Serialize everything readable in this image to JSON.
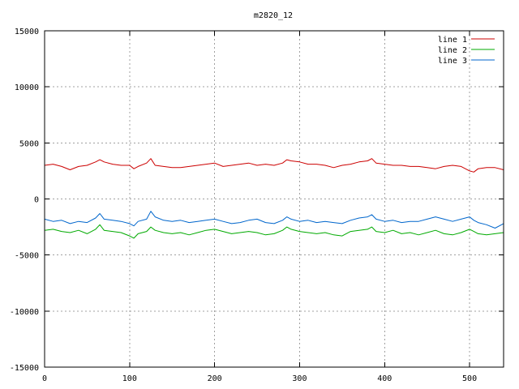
{
  "chart_data": {
    "type": "line",
    "title": "m2820_12",
    "xlabel": "",
    "ylabel": "",
    "xlim": [
      0,
      540
    ],
    "ylim": [
      -15000,
      15000
    ],
    "x_ticks": [
      0,
      100,
      200,
      300,
      400,
      500
    ],
    "y_ticks": [
      -15000,
      -10000,
      -5000,
      0,
      5000,
      10000,
      15000
    ],
    "grid": true,
    "legend_position": "top-right",
    "series": [
      {
        "name": "line 1",
        "color": "#cc0000",
        "x": [
          0,
          10,
          20,
          30,
          40,
          50,
          60,
          65,
          70,
          80,
          90,
          100,
          105,
          110,
          120,
          125,
          130,
          140,
          150,
          160,
          170,
          180,
          190,
          200,
          210,
          220,
          230,
          240,
          250,
          260,
          270,
          280,
          285,
          290,
          300,
          310,
          320,
          330,
          340,
          350,
          360,
          370,
          380,
          385,
          390,
          400,
          410,
          420,
          430,
          440,
          450,
          460,
          470,
          480,
          490,
          500,
          505,
          510,
          520,
          530,
          540
        ],
        "values": [
          3000,
          3100,
          2900,
          2600,
          2900,
          3000,
          3300,
          3500,
          3300,
          3100,
          3000,
          3000,
          2700,
          2900,
          3200,
          3600,
          3000,
          2900,
          2800,
          2800,
          2900,
          3000,
          3100,
          3200,
          2900,
          3000,
          3100,
          3200,
          3000,
          3100,
          3000,
          3200,
          3500,
          3400,
          3300,
          3100,
          3100,
          3000,
          2800,
          3000,
          3100,
          3300,
          3400,
          3600,
          3200,
          3100,
          3000,
          3000,
          2900,
          2900,
          2800,
          2700,
          2900,
          3000,
          2900,
          2500,
          2400,
          2700,
          2800,
          2800,
          2600
        ]
      },
      {
        "name": "line 2",
        "color": "#00aa00",
        "x": [
          0,
          10,
          20,
          30,
          40,
          50,
          60,
          65,
          70,
          80,
          90,
          100,
          105,
          110,
          120,
          125,
          130,
          140,
          150,
          160,
          170,
          180,
          190,
          200,
          210,
          220,
          230,
          240,
          250,
          260,
          270,
          280,
          285,
          290,
          300,
          310,
          320,
          330,
          340,
          350,
          360,
          370,
          380,
          385,
          390,
          400,
          410,
          420,
          430,
          440,
          450,
          460,
          470,
          480,
          490,
          500,
          505,
          510,
          520,
          530,
          540
        ],
        "values": [
          -2800,
          -2700,
          -2900,
          -3000,
          -2800,
          -3100,
          -2700,
          -2300,
          -2800,
          -2900,
          -3000,
          -3300,
          -3500,
          -3100,
          -2900,
          -2500,
          -2800,
          -3000,
          -3100,
          -3000,
          -3200,
          -3000,
          -2800,
          -2700,
          -2900,
          -3100,
          -3000,
          -2900,
          -3000,
          -3200,
          -3100,
          -2800,
          -2500,
          -2700,
          -2900,
          -3000,
          -3100,
          -3000,
          -3200,
          -3300,
          -2900,
          -2800,
          -2700,
          -2500,
          -2900,
          -3000,
          -2800,
          -3100,
          -3000,
          -3200,
          -3000,
          -2800,
          -3100,
          -3200,
          -3000,
          -2700,
          -2900,
          -3100,
          -3200,
          -3100,
          -3000
        ]
      },
      {
        "name": "line 3",
        "color": "#0066cc",
        "x": [
          0,
          10,
          20,
          30,
          40,
          50,
          60,
          65,
          70,
          80,
          90,
          100,
          105,
          110,
          120,
          125,
          130,
          140,
          150,
          160,
          170,
          180,
          190,
          200,
          210,
          220,
          230,
          240,
          250,
          260,
          270,
          280,
          285,
          290,
          300,
          310,
          320,
          330,
          340,
          350,
          360,
          370,
          380,
          385,
          390,
          400,
          410,
          420,
          430,
          440,
          450,
          460,
          470,
          480,
          490,
          500,
          505,
          510,
          520,
          530,
          540
        ],
        "values": [
          -1800,
          -2000,
          -1900,
          -2200,
          -2000,
          -2100,
          -1700,
          -1300,
          -1800,
          -1900,
          -2000,
          -2200,
          -2400,
          -2000,
          -1800,
          -1100,
          -1600,
          -1900,
          -2000,
          -1900,
          -2100,
          -2000,
          -1900,
          -1800,
          -2000,
          -2200,
          -2100,
          -1900,
          -1800,
          -2100,
          -2200,
          -1900,
          -1600,
          -1800,
          -2000,
          -1900,
          -2100,
          -2000,
          -2100,
          -2200,
          -1900,
          -1700,
          -1600,
          -1400,
          -1800,
          -2000,
          -1900,
          -2100,
          -2000,
          -2000,
          -1800,
          -1600,
          -1800,
          -2000,
          -1800,
          -1600,
          -1900,
          -2100,
          -2300,
          -2600,
          -2200
        ]
      }
    ]
  }
}
